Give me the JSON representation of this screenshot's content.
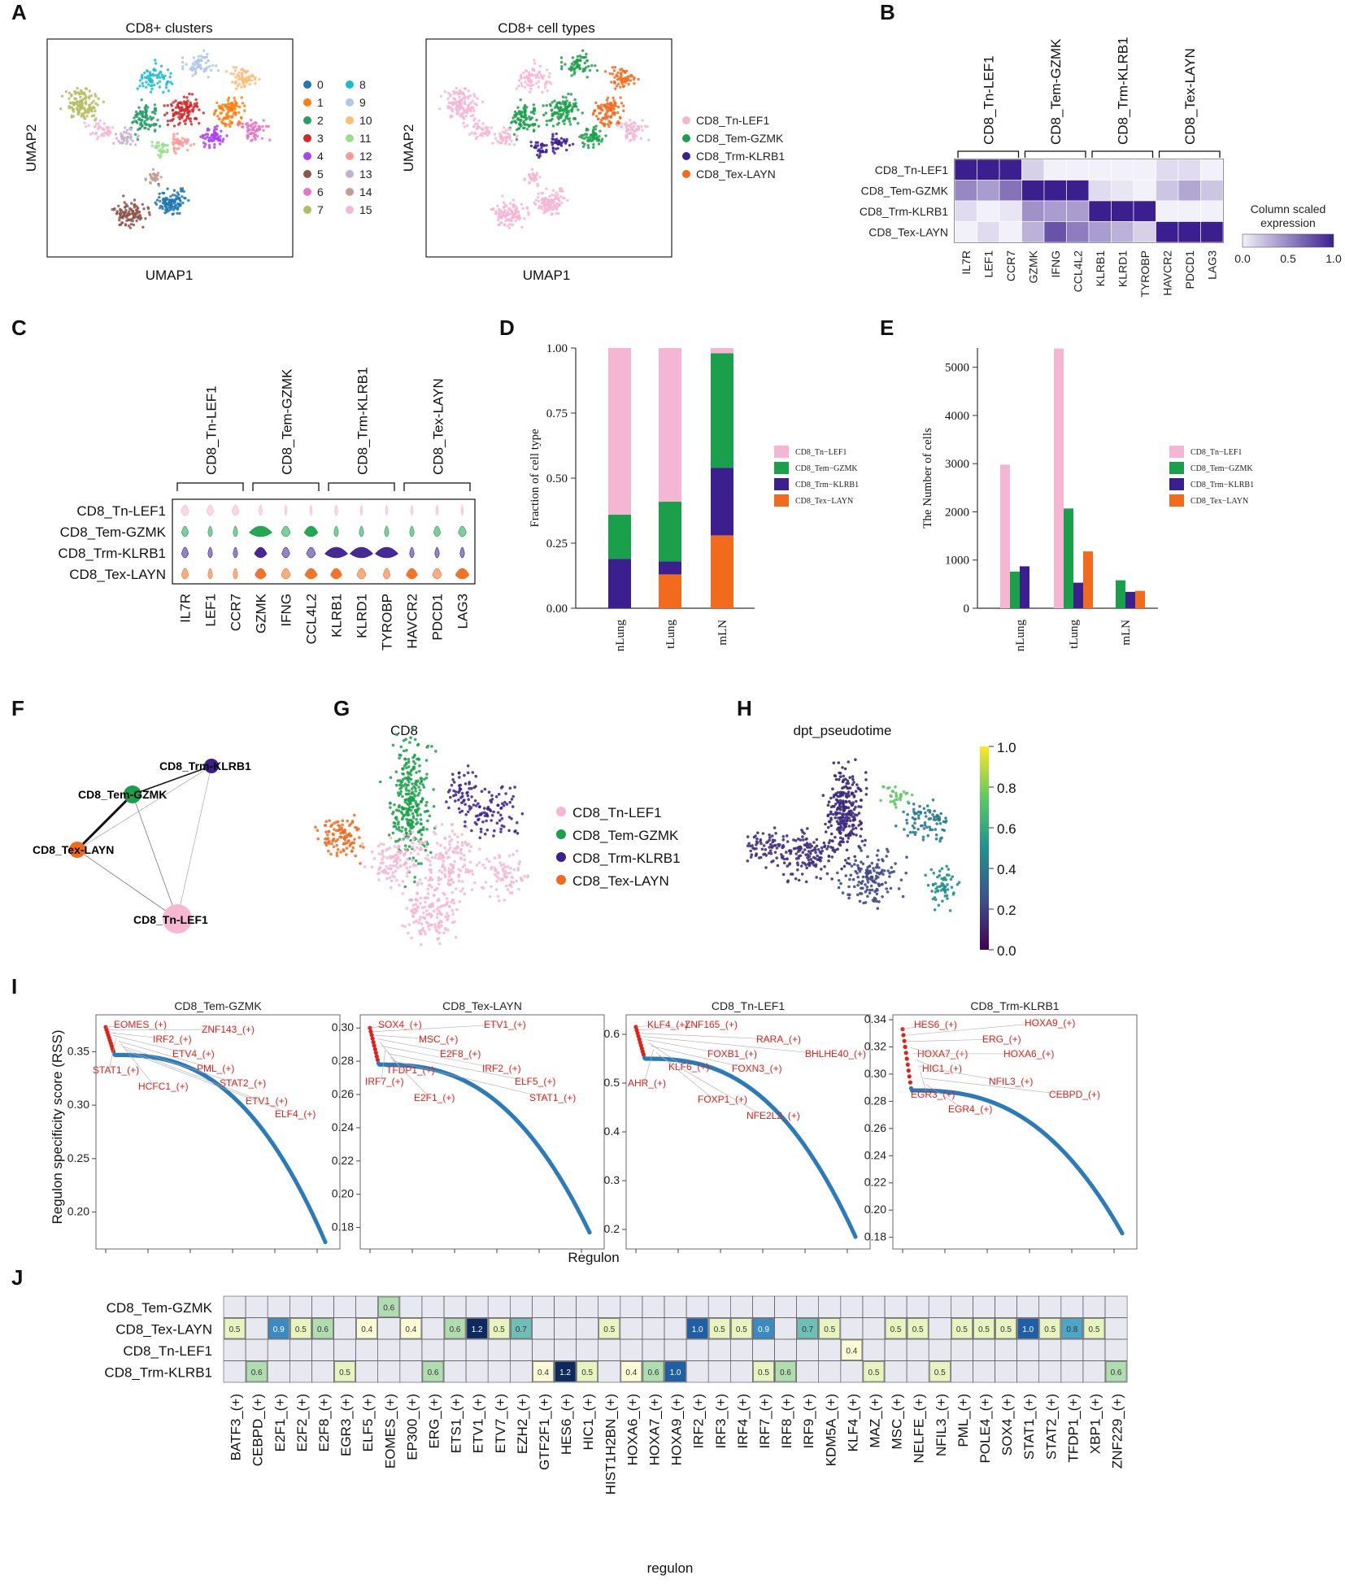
{
  "panel_labels": [
    "A",
    "B",
    "C",
    "D",
    "E",
    "F",
    "G",
    "H",
    "I",
    "J"
  ],
  "colors": {
    "tn": "#f4b6d2",
    "tem": "#1aa04a",
    "trm": "#3b1f8f",
    "tex": "#f26b1d",
    "rss": "#2b7bba",
    "rss_top": "#e0201a"
  },
  "panel_A": {
    "left_title": "CD8+ clusters",
    "right_title": "CD8+ cell types",
    "xlabel": "UMAP1",
    "ylabel": "UMAP2",
    "clusters": [
      {
        "label": "0",
        "color": "#1f77b4"
      },
      {
        "label": "1",
        "color": "#ff7f0e"
      },
      {
        "label": "2",
        "color": "#279e68"
      },
      {
        "label": "3",
        "color": "#d62728"
      },
      {
        "label": "4",
        "color": "#aa40fc"
      },
      {
        "label": "5",
        "color": "#8c564b"
      },
      {
        "label": "6",
        "color": "#e377c2"
      },
      {
        "label": "7",
        "color": "#b5bd61"
      },
      {
        "label": "8",
        "color": "#17becf"
      },
      {
        "label": "9",
        "color": "#aec7e8"
      },
      {
        "label": "10",
        "color": "#ffbb78"
      },
      {
        "label": "11",
        "color": "#98df8a"
      },
      {
        "label": "12",
        "color": "#ff9896"
      },
      {
        "label": "13",
        "color": "#c5b0d5"
      },
      {
        "label": "14",
        "color": "#c49c94"
      },
      {
        "label": "15",
        "color": "#f7b6d2"
      }
    ],
    "cell_types": [
      "CD8_Tn-LEF1",
      "CD8_Tem-GZMK",
      "CD8_Trm-KLRB1",
      "CD8_Tex-LAYN"
    ]
  },
  "panel_B": {
    "groups": [
      "CD8_Tn-LEF1",
      "CD8_Tem-GZMK",
      "CD8_Trm-KLRB1",
      "CD8_Tex-LAYN"
    ],
    "rows": [
      "CD8_Tn-LEF1",
      "CD8_Tem-GZMK",
      "CD8_Trm-KLRB1",
      "CD8_Tex-LAYN"
    ],
    "genes": [
      "IL7R",
      "LEF1",
      "CCR7",
      "GZMK",
      "IFNG",
      "CCL4L2",
      "KLRB1",
      "KLRD1",
      "TYROBP",
      "HAVCR2",
      "PDCD1",
      "LAG3"
    ],
    "values": [
      [
        1.0,
        1.0,
        1.0,
        0.15,
        0.0,
        0.0,
        0.0,
        0.0,
        0.0,
        0.1,
        0.1,
        0.0
      ],
      [
        0.5,
        0.4,
        0.6,
        1.0,
        1.0,
        1.0,
        0.1,
        0.05,
        0.0,
        0.2,
        0.35,
        0.2
      ],
      [
        0.1,
        0.0,
        0.05,
        0.45,
        0.4,
        0.4,
        1.0,
        1.0,
        1.0,
        0.0,
        0.0,
        0.0
      ],
      [
        0.0,
        0.1,
        0.0,
        0.3,
        0.75,
        0.55,
        0.4,
        0.3,
        0.15,
        1.0,
        1.0,
        1.0
      ]
    ],
    "legend_title": "Column scaled expression",
    "legend_ticks": [
      "0.0",
      "0.5",
      "1.0"
    ]
  },
  "panel_C": {
    "groups": [
      "CD8_Tn-LEF1",
      "CD8_Tem-GZMK",
      "CD8_Trm-KLRB1",
      "CD8_Tex-LAYN"
    ],
    "rows": [
      "CD8_Tn-LEF1",
      "CD8_Tem-GZMK",
      "CD8_Trm-KLRB1",
      "CD8_Tex-LAYN"
    ],
    "genes": [
      "IL7R",
      "LEF1",
      "CCR7",
      "GZMK",
      "IFNG",
      "CCL4L2",
      "KLRB1",
      "KLRD1",
      "TYROBP",
      "HAVCR2",
      "PDCD1",
      "LAG3"
    ],
    "widths": [
      [
        0.35,
        0.3,
        0.3,
        0.15,
        0.1,
        0.1,
        0.15,
        0.1,
        0.1,
        0.1,
        0.1,
        0.1
      ],
      [
        0.3,
        0.2,
        0.2,
        1.0,
        0.4,
        0.6,
        0.2,
        0.2,
        0.2,
        0.2,
        0.3,
        0.35
      ],
      [
        0.3,
        0.2,
        0.2,
        0.55,
        0.35,
        0.4,
        1.0,
        1.0,
        1.0,
        0.2,
        0.2,
        0.2
      ],
      [
        0.3,
        0.2,
        0.2,
        0.5,
        0.4,
        0.55,
        0.5,
        0.4,
        0.3,
        0.5,
        0.4,
        0.6
      ]
    ]
  },
  "chart_data": [
    {
      "type": "bar",
      "panel": "D",
      "stacked": true,
      "categories": [
        "nLung",
        "tLung",
        "mLN"
      ],
      "series": [
        {
          "name": "CD8_Tex-LAYN",
          "values": [
            0.0,
            0.13,
            0.28
          ]
        },
        {
          "name": "CD8_Trm-KLRB1",
          "values": [
            0.19,
            0.05,
            0.26
          ]
        },
        {
          "name": "CD8_Tem-GZMK",
          "values": [
            0.17,
            0.23,
            0.44
          ]
        },
        {
          "name": "CD8_Tn-LEF1",
          "values": [
            0.64,
            0.59,
            0.02
          ]
        }
      ],
      "legend": [
        "CD8_Tn−LEF1",
        "CD8_Tem−GZMK",
        "CD8_Trm−KLRB1",
        "CD8_Tex−LAYN"
      ],
      "ylabel": "Fraction of cell type",
      "yticks": [
        "0.00",
        "0.25",
        "0.50",
        "0.75",
        "1.00"
      ],
      "ylim": [
        0,
        1
      ]
    },
    {
      "type": "bar",
      "panel": "E",
      "categories": [
        "nLung",
        "tLung",
        "mLN"
      ],
      "series": [
        {
          "name": "CD8_Tn-LEF1",
          "values": [
            2980,
            5390,
            0
          ]
        },
        {
          "name": "CD8_Tem-GZMK",
          "values": [
            760,
            2070,
            580
          ]
        },
        {
          "name": "CD8_Trm-KLRB1",
          "values": [
            870,
            530,
            340
          ]
        },
        {
          "name": "CD8_Tex-LAYN",
          "values": [
            0,
            1180,
            360
          ]
        }
      ],
      "legend": [
        "CD8_Tn−LEF1",
        "CD8_Tem−GZMK",
        "CD8_Trm−KLRB1",
        "CD8_Tex−LAYN"
      ],
      "ylabel": "The Number of cells",
      "yticks": [
        "0",
        "1000",
        "2000",
        "3000",
        "4000",
        "5000"
      ],
      "ylim": [
        0,
        5400
      ]
    },
    {
      "type": "scatter",
      "panel": "I",
      "ylabel": "Regulon specificity score (RSS)",
      "xlabel": "Regulon",
      "subplots": [
        {
          "title": "CD8_Tem-GZMK",
          "ymin": 0.17,
          "ymax": 0.38,
          "yticks": [
            "0.20",
            "0.25",
            "0.30",
            "0.35"
          ],
          "top": 0.373,
          "flat": 0.347,
          "bottom": 0.172,
          "labels": [
            "EOMES_(+)",
            "ZNF143_(+)",
            "IRF2_(+)",
            "ETV4_(+)",
            "STAT1_(+)",
            "PML_(+)",
            "HCFC1_(+)",
            "STAT2_(+)",
            "ETV1_(+)",
            "ELF4_(+)"
          ]
        },
        {
          "title": "CD8_Tex-LAYN",
          "ymin": 0.17,
          "ymax": 0.305,
          "yticks": [
            "0.18",
            "0.20",
            "0.22",
            "0.24",
            "0.26",
            "0.28",
            "0.30"
          ],
          "top": 0.3,
          "flat": 0.278,
          "bottom": 0.177,
          "labels": [
            "SOX4_(+)",
            "ETV1_(+)",
            "MSC_(+)",
            "E2F8_(+)",
            "TFDP1_(+)",
            "IRF2_(+)",
            "IRF7_(+)",
            "ELF5_(+)",
            "E2F1_(+)",
            "STAT1_(+)"
          ]
        },
        {
          "title": "CD8_Tn-LEF1",
          "ymin": 0.17,
          "ymax": 0.63,
          "yticks": [
            "0.2",
            "0.3",
            "0.4",
            "0.5",
            "0.6"
          ],
          "top": 0.615,
          "flat": 0.55,
          "bottom": 0.185,
          "labels": [
            "KLF4_(+)",
            "ZNF165_(+)",
            "RARA_(+)",
            "BHLHE40_(+)",
            "FOXB1_(+)",
            "KLF6_(+)",
            "FOXN3_(+)",
            "AHR_(+)",
            "FOXP1_(+)",
            "NFE2L2_(+)"
          ]
        },
        {
          "title": "CD8_Trm-KLRB1",
          "ymin": 0.175,
          "ymax": 0.34,
          "yticks": [
            "0.18",
            "0.20",
            "0.22",
            "0.24",
            "0.26",
            "0.28",
            "0.30",
            "0.32",
            "0.34"
          ],
          "top": 0.333,
          "flat": 0.288,
          "bottom": 0.183,
          "labels": [
            "HES6_(+)",
            "HOXA9_(+)",
            "ERG_(+)",
            "HOXA7_(+)",
            "HOXA6_(+)",
            "HIC1_(+)",
            "NFIL3_(+)",
            "EGR3_(+)",
            "CEBPD_(+)",
            "EGR4_(+)"
          ]
        }
      ]
    },
    {
      "type": "heatmap",
      "panel": "J",
      "xlabel": "regulon",
      "rows": [
        "CD8_Tem-GZMK",
        "CD8_Tex-LAYN",
        "CD8_Tn-LEF1",
        "CD8_Trm-KLRB1"
      ],
      "columns": [
        "BATF3_(+)",
        "CEBPD_(+)",
        "E2F1_(+)",
        "E2F2_(+)",
        "E2F8_(+)",
        "EGR3_(+)",
        "ELF5_(+)",
        "EOMES_(+)",
        "EP300_(+)",
        "ERG_(+)",
        "ETS1_(+)",
        "ETV1_(+)",
        "ETV7_(+)",
        "EZH2_(+)",
        "GTF2F1_(+)",
        "HES6_(+)",
        "HIC1_(+)",
        "HIST1H2BN_(+)",
        "HOXA6_(+)",
        "HOXA7_(+)",
        "HOXA9_(+)",
        "IRF2_(+)",
        "IRF3_(+)",
        "IRF4_(+)",
        "IRF7_(+)",
        "IRF8_(+)",
        "IRF9_(+)",
        "KDM5A_(+)",
        "KLF4_(+)",
        "MAZ_(+)",
        "MSC_(+)",
        "NELFE_(+)",
        "NFIL3_(+)",
        "PML_(+)",
        "POLE4_(+)",
        "SOX4_(+)",
        "STAT1_(+)",
        "STAT2_(+)",
        "TFDP1_(+)",
        "XBP1_(+)",
        "ZNF229_(+)"
      ],
      "cells": [
        {
          "row": 0,
          "col": 7,
          "value": 0.6
        },
        {
          "row": 1,
          "col": 0,
          "value": 0.5
        },
        {
          "row": 1,
          "col": 2,
          "value": 0.9
        },
        {
          "row": 1,
          "col": 3,
          "value": 0.5
        },
        {
          "row": 1,
          "col": 4,
          "value": 0.6
        },
        {
          "row": 1,
          "col": 6,
          "value": 0.4
        },
        {
          "row": 1,
          "col": 8,
          "value": 0.4
        },
        {
          "row": 1,
          "col": 10,
          "value": 0.6
        },
        {
          "row": 1,
          "col": 11,
          "value": 1.2
        },
        {
          "row": 1,
          "col": 12,
          "value": 0.5
        },
        {
          "row": 1,
          "col": 13,
          "value": 0.7
        },
        {
          "row": 1,
          "col": 17,
          "value": 0.5
        },
        {
          "row": 1,
          "col": 21,
          "value": 1.0
        },
        {
          "row": 1,
          "col": 22,
          "value": 0.5
        },
        {
          "row": 1,
          "col": 23,
          "value": 0.5
        },
        {
          "row": 1,
          "col": 24,
          "value": 0.9
        },
        {
          "row": 1,
          "col": 26,
          "value": 0.7
        },
        {
          "row": 1,
          "col": 27,
          "value": 0.5
        },
        {
          "row": 1,
          "col": 30,
          "value": 0.5
        },
        {
          "row": 1,
          "col": 31,
          "value": 0.5
        },
        {
          "row": 1,
          "col": 33,
          "value": 0.5
        },
        {
          "row": 1,
          "col": 34,
          "value": 0.5
        },
        {
          "row": 1,
          "col": 35,
          "value": 0.5
        },
        {
          "row": 1,
          "col": 36,
          "value": 1.0
        },
        {
          "row": 1,
          "col": 37,
          "value": 0.5
        },
        {
          "row": 1,
          "col": 38,
          "value": 0.8
        },
        {
          "row": 1,
          "col": 39,
          "value": 0.5
        },
        {
          "row": 2,
          "col": 28,
          "value": 0.4
        },
        {
          "row": 3,
          "col": 1,
          "value": 0.6
        },
        {
          "row": 3,
          "col": 5,
          "value": 0.5
        },
        {
          "row": 3,
          "col": 9,
          "value": 0.6
        },
        {
          "row": 3,
          "col": 14,
          "value": 0.4
        },
        {
          "row": 3,
          "col": 15,
          "value": 1.2
        },
        {
          "row": 3,
          "col": 16,
          "value": 0.5
        },
        {
          "row": 3,
          "col": 18,
          "value": 0.4
        },
        {
          "row": 3,
          "col": 19,
          "value": 0.6
        },
        {
          "row": 3,
          "col": 20,
          "value": 1.0
        },
        {
          "row": 3,
          "col": 24,
          "value": 0.5
        },
        {
          "row": 3,
          "col": 25,
          "value": 0.6
        },
        {
          "row": 3,
          "col": 29,
          "value": 0.5
        },
        {
          "row": 3,
          "col": 32,
          "value": 0.5
        },
        {
          "row": 3,
          "col": 40,
          "value": 0.6
        }
      ]
    }
  ],
  "panel_F": {
    "nodes": [
      "CD8_Trm-KLRB1",
      "CD8_Tem-GZMK",
      "CD8_Tex-LAYN",
      "CD8_Tn-LEF1"
    ]
  },
  "panel_G": {
    "title": "CD8",
    "legend": [
      "CD8_Tn-LEF1",
      "CD8_Tem-GZMK",
      "CD8_Trm-KLRB1",
      "CD8_Tex-LAYN"
    ]
  },
  "panel_H": {
    "title": "dpt_pseudotime",
    "ticks": [
      "0.0",
      "0.2",
      "0.4",
      "0.6",
      "0.8",
      "1.0"
    ]
  }
}
